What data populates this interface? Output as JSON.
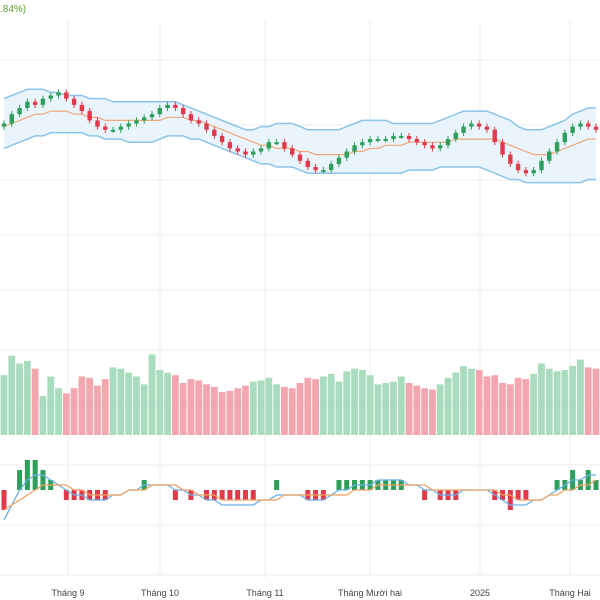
{
  "header": {
    "change_label": ".84%)"
  },
  "colors": {
    "up": "#2e9e5b",
    "down": "#e0394a",
    "up_volume": "#a8dcbc",
    "down_volume": "#f4a6ae",
    "bollinger_band": "#8cc4ec",
    "bollinger_fill": "#e9f4fc",
    "moving_average": "#f0a878",
    "macd_line": "#6aaee6",
    "signal_line": "#f0a060",
    "grid": "#eeeeee"
  },
  "chart_data": [
    {
      "type": "candlestick",
      "panel": "price",
      "overlays": [
        "bollinger_upper",
        "bollinger_middle",
        "bollinger_lower"
      ],
      "close": [
        98,
        101,
        103,
        105,
        104,
        106,
        107,
        108,
        106,
        104,
        102,
        99,
        97,
        96,
        96,
        97,
        98,
        99,
        100,
        101,
        103,
        104,
        103,
        101,
        99,
        98,
        96,
        94,
        92,
        90,
        89,
        88,
        89,
        90,
        92,
        92,
        90,
        88,
        86,
        84,
        83,
        83,
        85,
        87,
        89,
        91,
        92,
        93,
        93,
        93,
        94,
        94,
        93,
        92,
        91,
        90,
        91,
        93,
        95,
        97,
        98,
        97,
        96,
        92,
        88,
        85,
        83,
        82,
        83,
        86,
        89,
        92,
        95,
        97,
        98,
        97,
        96
      ],
      "bollinger_upper": [
        106,
        107,
        108,
        109,
        109,
        109,
        108,
        108,
        107,
        107,
        107,
        106,
        106,
        106,
        105,
        105,
        105,
        105,
        105,
        105,
        105,
        105,
        105,
        104,
        103,
        102,
        101,
        100,
        99,
        98,
        97,
        96,
        96,
        97,
        97,
        98,
        98,
        98,
        97,
        96,
        96,
        96,
        96,
        96,
        97,
        98,
        99,
        99,
        99,
        99,
        98,
        98,
        98,
        98,
        98,
        98,
        99,
        100,
        101,
        102,
        102,
        102,
        102,
        101,
        100,
        99,
        97,
        96,
        96,
        96,
        97,
        98,
        99,
        101,
        102,
        103,
        103
      ],
      "bollinger_middle": [
        97,
        98,
        99,
        100,
        101,
        101,
        102,
        102,
        102,
        101,
        101,
        100,
        100,
        99,
        99,
        99,
        99,
        99,
        99,
        99,
        99,
        100,
        100,
        100,
        99,
        99,
        98,
        97,
        96,
        95,
        94,
        93,
        92,
        91,
        91,
        90,
        90,
        90,
        89,
        89,
        88,
        88,
        88,
        88,
        88,
        89,
        89,
        90,
        90,
        91,
        91,
        91,
        92,
        92,
        92,
        92,
        92,
        92,
        93,
        93,
        93,
        93,
        93,
        93,
        92,
        91,
        90,
        89,
        88,
        88,
        88,
        89,
        90,
        91,
        92,
        93,
        93
      ],
      "bollinger_lower": [
        90,
        91,
        92,
        93,
        94,
        94,
        95,
        95,
        95,
        95,
        95,
        94,
        94,
        93,
        93,
        93,
        92,
        92,
        92,
        92,
        93,
        94,
        94,
        94,
        93,
        93,
        92,
        91,
        90,
        89,
        88,
        87,
        86,
        85,
        85,
        84,
        84,
        84,
        83,
        82,
        82,
        82,
        82,
        82,
        82,
        82,
        82,
        82,
        82,
        82,
        82,
        82,
        83,
        83,
        83,
        83,
        84,
        84,
        84,
        84,
        84,
        84,
        83,
        82,
        81,
        80,
        80,
        79,
        79,
        79,
        79,
        79,
        79,
        79,
        79,
        80,
        80
      ]
    },
    {
      "type": "bar",
      "panel": "volume",
      "values": [
        46,
        61,
        55,
        57,
        51,
        30,
        45,
        36,
        32,
        36,
        45,
        44,
        38,
        43,
        52,
        51,
        48,
        45,
        39,
        62,
        50,
        48,
        46,
        40,
        43,
        42,
        39,
        37,
        33,
        34,
        36,
        38,
        41,
        42,
        44,
        39,
        37,
        36,
        40,
        44,
        43,
        45,
        47,
        41,
        49,
        51,
        50,
        46,
        39,
        40,
        41,
        45,
        40,
        38,
        36,
        35,
        39,
        44,
        48,
        53,
        51,
        50,
        45,
        46,
        40,
        39,
        44,
        43,
        47,
        55,
        51,
        49,
        50,
        53,
        58,
        52,
        51
      ]
    },
    {
      "type": "line",
      "panel": "macd",
      "series": [
        {
          "values": [
            -6,
            -3,
            0,
            2,
            3,
            3,
            2,
            1,
            0,
            -1,
            -1,
            -2,
            -2,
            -2,
            -1,
            -1,
            0,
            0,
            1,
            1,
            1,
            1,
            0,
            0,
            -1,
            -1,
            -2,
            -2,
            -3,
            -3,
            -3,
            -3,
            -3,
            -2,
            -2,
            -1,
            -1,
            -1,
            -1,
            -2,
            -2,
            -2,
            -1,
            0,
            0,
            1,
            1,
            1,
            2,
            2,
            2,
            2,
            1,
            1,
            0,
            0,
            -1,
            -1,
            -1,
            0,
            0,
            0,
            0,
            -1,
            -2,
            -3,
            -3,
            -3,
            -2,
            -2,
            -1,
            0,
            1,
            2,
            2,
            3,
            3
          ]
        },
        {
          "values": [
            -4,
            -3,
            -2,
            -1,
            0,
            1,
            1,
            1,
            1,
            0,
            0,
            -1,
            -1,
            -1,
            -1,
            -1,
            0,
            0,
            0,
            1,
            1,
            1,
            1,
            0,
            0,
            -1,
            -1,
            -1,
            -2,
            -2,
            -2,
            -2,
            -2,
            -2,
            -2,
            -2,
            -1,
            -1,
            -1,
            -1,
            -1,
            -1,
            -1,
            -1,
            -1,
            0,
            0,
            0,
            1,
            1,
            1,
            1,
            1,
            1,
            1,
            0,
            0,
            0,
            0,
            0,
            0,
            0,
            0,
            0,
            -1,
            -1,
            -2,
            -2,
            -2,
            -2,
            -1,
            -1,
            0,
            0,
            1,
            1,
            2
          ]
        }
      ]
    }
  ],
  "x_axis": {
    "labels": [
      "Tháng 9",
      "Tháng 10",
      "Tháng 11",
      "Tháng Mười hai",
      "2025",
      "Tháng Hai"
    ]
  }
}
